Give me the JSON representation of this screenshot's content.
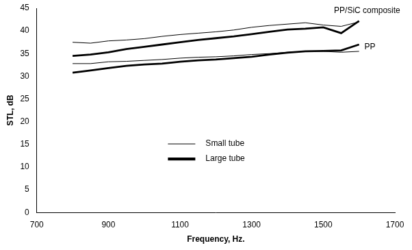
{
  "chart_data": {
    "type": "line",
    "x_label": "Frequency, Hz.",
    "y_label": "STL, dB",
    "x": [
      800,
      850,
      900,
      950,
      1000,
      1050,
      1100,
      1150,
      1200,
      1250,
      1300,
      1350,
      1400,
      1450,
      1500,
      1550,
      1600
    ],
    "series": [
      {
        "name": "Small tube",
        "color": "#000000",
        "line_style": "thin",
        "marker": "none",
        "values": [
          37.5,
          37.3,
          37.8,
          38.0,
          38.3,
          38.8,
          39.2,
          39.5,
          39.8,
          40.2,
          40.8,
          41.2,
          41.5,
          41.8,
          41.3,
          41.0,
          42.0
        ]
      },
      {
        "name": "Large tube",
        "color": "#000000",
        "line_style": "thick",
        "marker": "none",
        "values": [
          34.5,
          34.8,
          35.3,
          36.0,
          36.5,
          37.0,
          37.5,
          38.0,
          38.4,
          38.8,
          39.3,
          39.8,
          40.3,
          40.5,
          40.8,
          39.5,
          42.2
        ]
      },
      {
        "name": "Small tube",
        "color": "#000000",
        "line_style": "thin",
        "marker": "none",
        "values": [
          32.8,
          32.8,
          33.2,
          33.3,
          33.5,
          33.7,
          34.0,
          34.2,
          34.3,
          34.5,
          34.8,
          35.0,
          35.3,
          35.5,
          35.5,
          35.3,
          35.5
        ]
      },
      {
        "name": "Large tube",
        "color": "#000000",
        "line_style": "thick",
        "marker": "none",
        "values": [
          30.8,
          31.3,
          31.8,
          32.3,
          32.6,
          32.8,
          33.2,
          33.5,
          33.7,
          34.0,
          34.3,
          34.8,
          35.2,
          35.5,
          35.6,
          35.7,
          37.0
        ]
      }
    ],
    "annotations": [
      {
        "text": "PP/SiC composite",
        "x": 1530,
        "y": 44.5
      },
      {
        "text": "PP",
        "x": 1615,
        "y": 36.5
      }
    ],
    "xlim": [
      700,
      1700
    ],
    "xticks": [
      700,
      900,
      1100,
      1300,
      1500,
      1700
    ],
    "ylim": [
      0,
      45
    ],
    "yticks": [
      0,
      5,
      10,
      15,
      20,
      25,
      30,
      35,
      40,
      45
    ],
    "grid": false,
    "legend": "center"
  }
}
